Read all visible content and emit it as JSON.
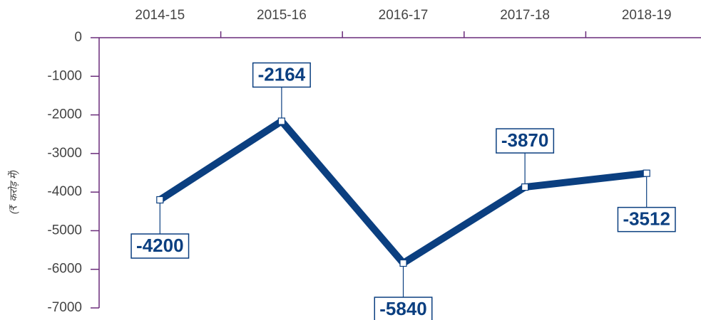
{
  "chart_data": {
    "type": "line",
    "y_label": "(₹ करोड़ में)",
    "categories": [
      "2014-15",
      "2015-16",
      "2016-17",
      "2017-18",
      "2018-19"
    ],
    "series": [
      {
        "name": "",
        "color": "#0b3f80",
        "values": [
          -4200,
          -2164,
          -5840,
          -3870,
          -3512
        ]
      }
    ],
    "ylim": [
      -7000,
      0
    ],
    "yticks": [
      0,
      -1000,
      -2000,
      -3000,
      -4000,
      -5000,
      -6000,
      -7000
    ]
  }
}
